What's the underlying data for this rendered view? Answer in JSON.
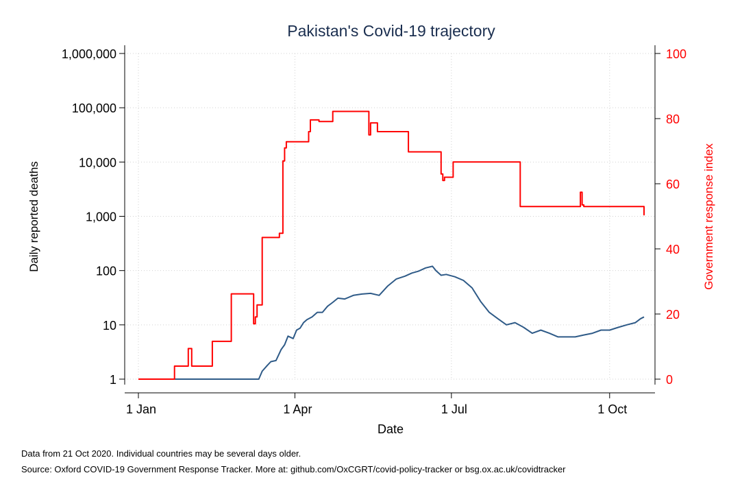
{
  "chart_data": {
    "type": "line",
    "title": "Pakistan's Covid-19 trajectory",
    "xlabel": "Date",
    "ylabel_left": "Daily reported deaths",
    "ylabel_right": "Government response index",
    "x_ticks": [
      "1 Jan",
      "1 Apr",
      "1 Jul",
      "1 Oct"
    ],
    "x_tick_dates": [
      "2020-01-01",
      "2020-04-01",
      "2020-07-01",
      "2020-10-01"
    ],
    "y_left_ticks": [
      "1",
      "10",
      "100",
      "1,000",
      "10,000",
      "100,000",
      "1,000,000"
    ],
    "y_left_tick_values": [
      1,
      10,
      100,
      1000,
      10000,
      100000,
      1000000
    ],
    "y_left_scale": "log",
    "ylim_left": [
      1,
      1000000
    ],
    "y_right_ticks": [
      "0",
      "20",
      "40",
      "60",
      "80",
      "100"
    ],
    "y_right_tick_values": [
      0,
      20,
      40,
      60,
      80,
      100
    ],
    "ylim_right": [
      0,
      100
    ],
    "xlim": [
      "2020-01-01",
      "2020-10-21"
    ],
    "grid": true,
    "colors": {
      "deaths": "#2e5a87",
      "response_index": "#ff0000",
      "title": "#1a2e4f",
      "right_axis": "#ff0000"
    },
    "series": [
      {
        "axis": "left",
        "color": "#2e5a87",
        "x": [
          "2020-01-01",
          "2020-03-11",
          "2020-03-13",
          "2020-03-16",
          "2020-03-18",
          "2020-03-21",
          "2020-03-24",
          "2020-03-26",
          "2020-03-28",
          "2020-03-31",
          "2020-04-02",
          "2020-04-04",
          "2020-04-06",
          "2020-04-08",
          "2020-04-11",
          "2020-04-14",
          "2020-04-17",
          "2020-04-20",
          "2020-04-23",
          "2020-04-26",
          "2020-04-30",
          "2020-05-05",
          "2020-05-10",
          "2020-05-15",
          "2020-05-20",
          "2020-05-25",
          "2020-05-30",
          "2020-06-04",
          "2020-06-08",
          "2020-06-12",
          "2020-06-16",
          "2020-06-20",
          "2020-06-22",
          "2020-06-25",
          "2020-06-28",
          "2020-07-03",
          "2020-07-08",
          "2020-07-13",
          "2020-07-18",
          "2020-07-23",
          "2020-07-28",
          "2020-08-02",
          "2020-08-07",
          "2020-08-12",
          "2020-08-17",
          "2020-08-22",
          "2020-08-27",
          "2020-09-01",
          "2020-09-06",
          "2020-09-11",
          "2020-09-16",
          "2020-09-21",
          "2020-09-26",
          "2020-10-01",
          "2020-10-06",
          "2020-10-11",
          "2020-10-16",
          "2020-10-19",
          "2020-10-21"
        ],
        "values": [
          1,
          1,
          1.4,
          1.8,
          2.1,
          2.2,
          3.5,
          4.3,
          6.2,
          5.6,
          8,
          8.7,
          11,
          12.5,
          14,
          17,
          17,
          22,
          26,
          31,
          30,
          35,
          37,
          38,
          35,
          52,
          70,
          79,
          90,
          98,
          112,
          120,
          100,
          82,
          85,
          77,
          66,
          48,
          27,
          17,
          13,
          10,
          11,
          9,
          7,
          8,
          7,
          6,
          6,
          6,
          6.5,
          7,
          8,
          8,
          9,
          10,
          11,
          13,
          14
        ]
      },
      {
        "axis": "right",
        "color": "#ff0000",
        "step": true,
        "x": [
          "2020-01-01",
          "2020-01-22",
          "2020-01-30",
          "2020-02-01",
          "2020-02-04",
          "2020-02-13",
          "2020-02-24",
          "2020-03-08",
          "2020-03-09",
          "2020-03-10",
          "2020-03-13",
          "2020-03-22",
          "2020-03-23",
          "2020-03-24",
          "2020-03-25",
          "2020-03-26",
          "2020-03-27",
          "2020-04-08",
          "2020-04-09",
          "2020-04-10",
          "2020-04-13",
          "2020-04-15",
          "2020-04-23",
          "2020-04-30",
          "2020-05-14",
          "2020-05-15",
          "2020-05-17",
          "2020-05-19",
          "2020-06-04",
          "2020-06-06",
          "2020-06-25",
          "2020-06-26",
          "2020-06-27",
          "2020-07-02",
          "2020-08-09",
          "2020-08-10",
          "2020-08-12",
          "2020-09-14",
          "2020-09-15",
          "2020-09-16",
          "2020-09-25",
          "2020-10-21"
        ],
        "values": [
          0,
          4,
          9.4,
          4,
          4,
          11.6,
          26.2,
          17,
          19.1,
          22.8,
          43.5,
          43.5,
          44.8,
          44.8,
          67,
          71,
          72.9,
          72.9,
          76,
          79.6,
          79.6,
          79.1,
          82.2,
          82.2,
          75,
          78.7,
          78.7,
          76,
          76,
          69.8,
          63,
          61,
          62,
          66.7,
          66.7,
          53,
          53,
          57.4,
          53.5,
          53,
          53,
          50.3
        ]
      }
    ]
  },
  "footnotes": {
    "line1": "Data from 21 Oct 2020. Individual countries may be several days older.",
    "line2": "Source: Oxford COVID-19 Government Response Tracker. More at: github.com/OxCGRT/covid-policy-tracker or bsg.ox.ac.uk/covidtracker"
  }
}
